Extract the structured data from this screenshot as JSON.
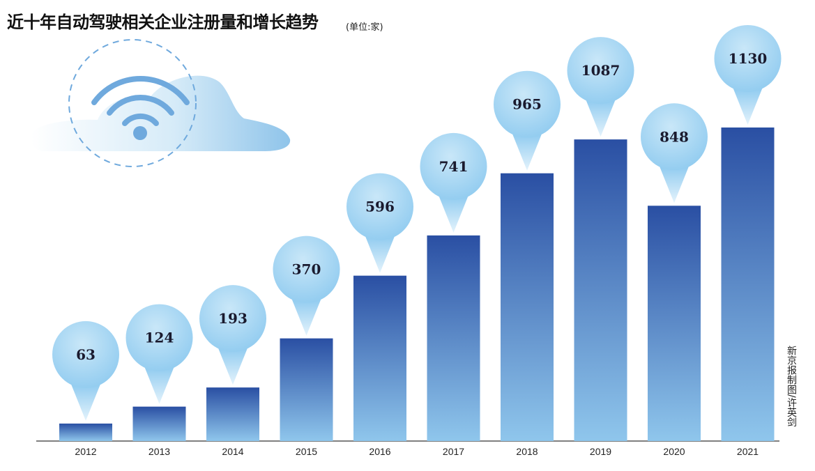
{
  "title": "近十年自动驾驶相关企业注册量和增长趋势",
  "unit": "(单位:家)",
  "credit": "新京报制图/许英剑",
  "colors": {
    "bar_top": "#2a4fa3",
    "bar_bottom": "#8fc6ec",
    "bubble": "#8cc9ef",
    "bubble_light": "#c9e7f8",
    "wifi": "#6fa9dd",
    "cloud": "#a9d3f0"
  },
  "chart_data": {
    "type": "bar",
    "title": "近十年自动驾驶相关企业注册量和增长趋势",
    "unit": "(单位:家)",
    "categories": [
      "2012",
      "2013",
      "2014",
      "2015",
      "2016",
      "2017",
      "2018",
      "2019",
      "2020",
      "2021"
    ],
    "values": [
      63,
      124,
      193,
      370,
      596,
      741,
      965,
      1087,
      848,
      1130
    ],
    "ylim": [
      0,
      1130
    ],
    "grid": false,
    "legend": "none"
  }
}
